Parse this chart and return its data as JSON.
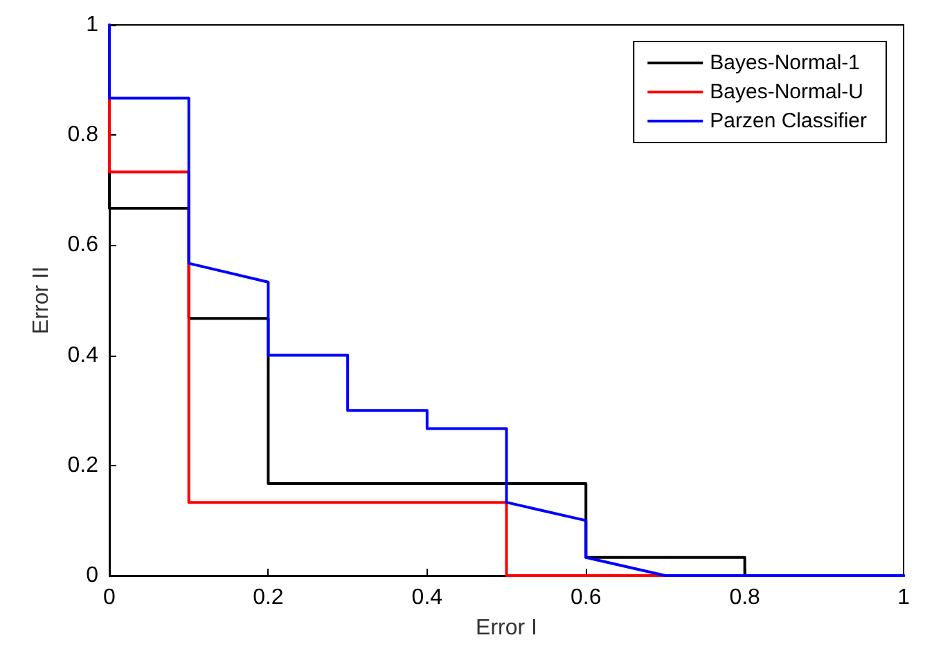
{
  "chart_data": {
    "type": "line",
    "xlabel": "Error I",
    "ylabel": "Error II",
    "xlim": [
      0,
      1
    ],
    "ylim": [
      0,
      1
    ],
    "xticks": [
      0,
      0.2,
      0.4,
      0.6,
      0.8,
      1
    ],
    "yticks": [
      0,
      0.2,
      0.4,
      0.6,
      0.8,
      1
    ],
    "grid": false,
    "legend": "top right",
    "marker": "none",
    "line_style": "solid",
    "series": [
      {
        "name": "Bayes-Normal-1",
        "color": "#000000",
        "x": [
          0,
          0,
          0.1,
          0.1,
          0.2,
          0.2,
          0.6,
          0.6,
          0.8,
          0.8,
          1
        ],
        "values": [
          1,
          0.667,
          0.667,
          0.467,
          0.467,
          0.167,
          0.167,
          0.033,
          0.033,
          0,
          0
        ]
      },
      {
        "name": "Bayes-Normal-U",
        "color": "#ff0000",
        "x": [
          0,
          0,
          0.1,
          0.1,
          0.5,
          0.5,
          1
        ],
        "values": [
          1,
          0.733,
          0.733,
          0.133,
          0.133,
          0,
          0
        ]
      },
      {
        "name": "Parzen Classifier",
        "color": "#0000ff",
        "x": [
          0,
          0,
          0.1,
          0.1,
          0.2,
          0.2,
          0.3,
          0.3,
          0.4,
          0.4,
          0.5,
          0.5,
          0.6,
          0.6,
          0.7,
          1
        ],
        "values": [
          1,
          0.867,
          0.867,
          0.567,
          0.533,
          0.4,
          0.4,
          0.3,
          0.3,
          0.267,
          0.267,
          0.133,
          0.1,
          0.033,
          0,
          0
        ]
      }
    ]
  }
}
